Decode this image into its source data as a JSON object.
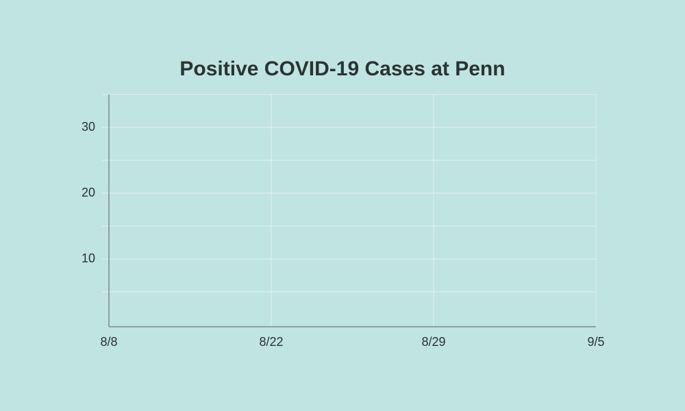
{
  "chart_data": {
    "type": "line",
    "title": "Positive COVID-19 Cases at Penn",
    "categories": [
      "8/8",
      "8/22",
      "8/29",
      "9/5"
    ],
    "ylim": [
      0,
      35
    ],
    "yticks": [
      10,
      20,
      30
    ],
    "y_minor_ticks": [
      5,
      15,
      25,
      35
    ],
    "grid": true,
    "series": []
  }
}
